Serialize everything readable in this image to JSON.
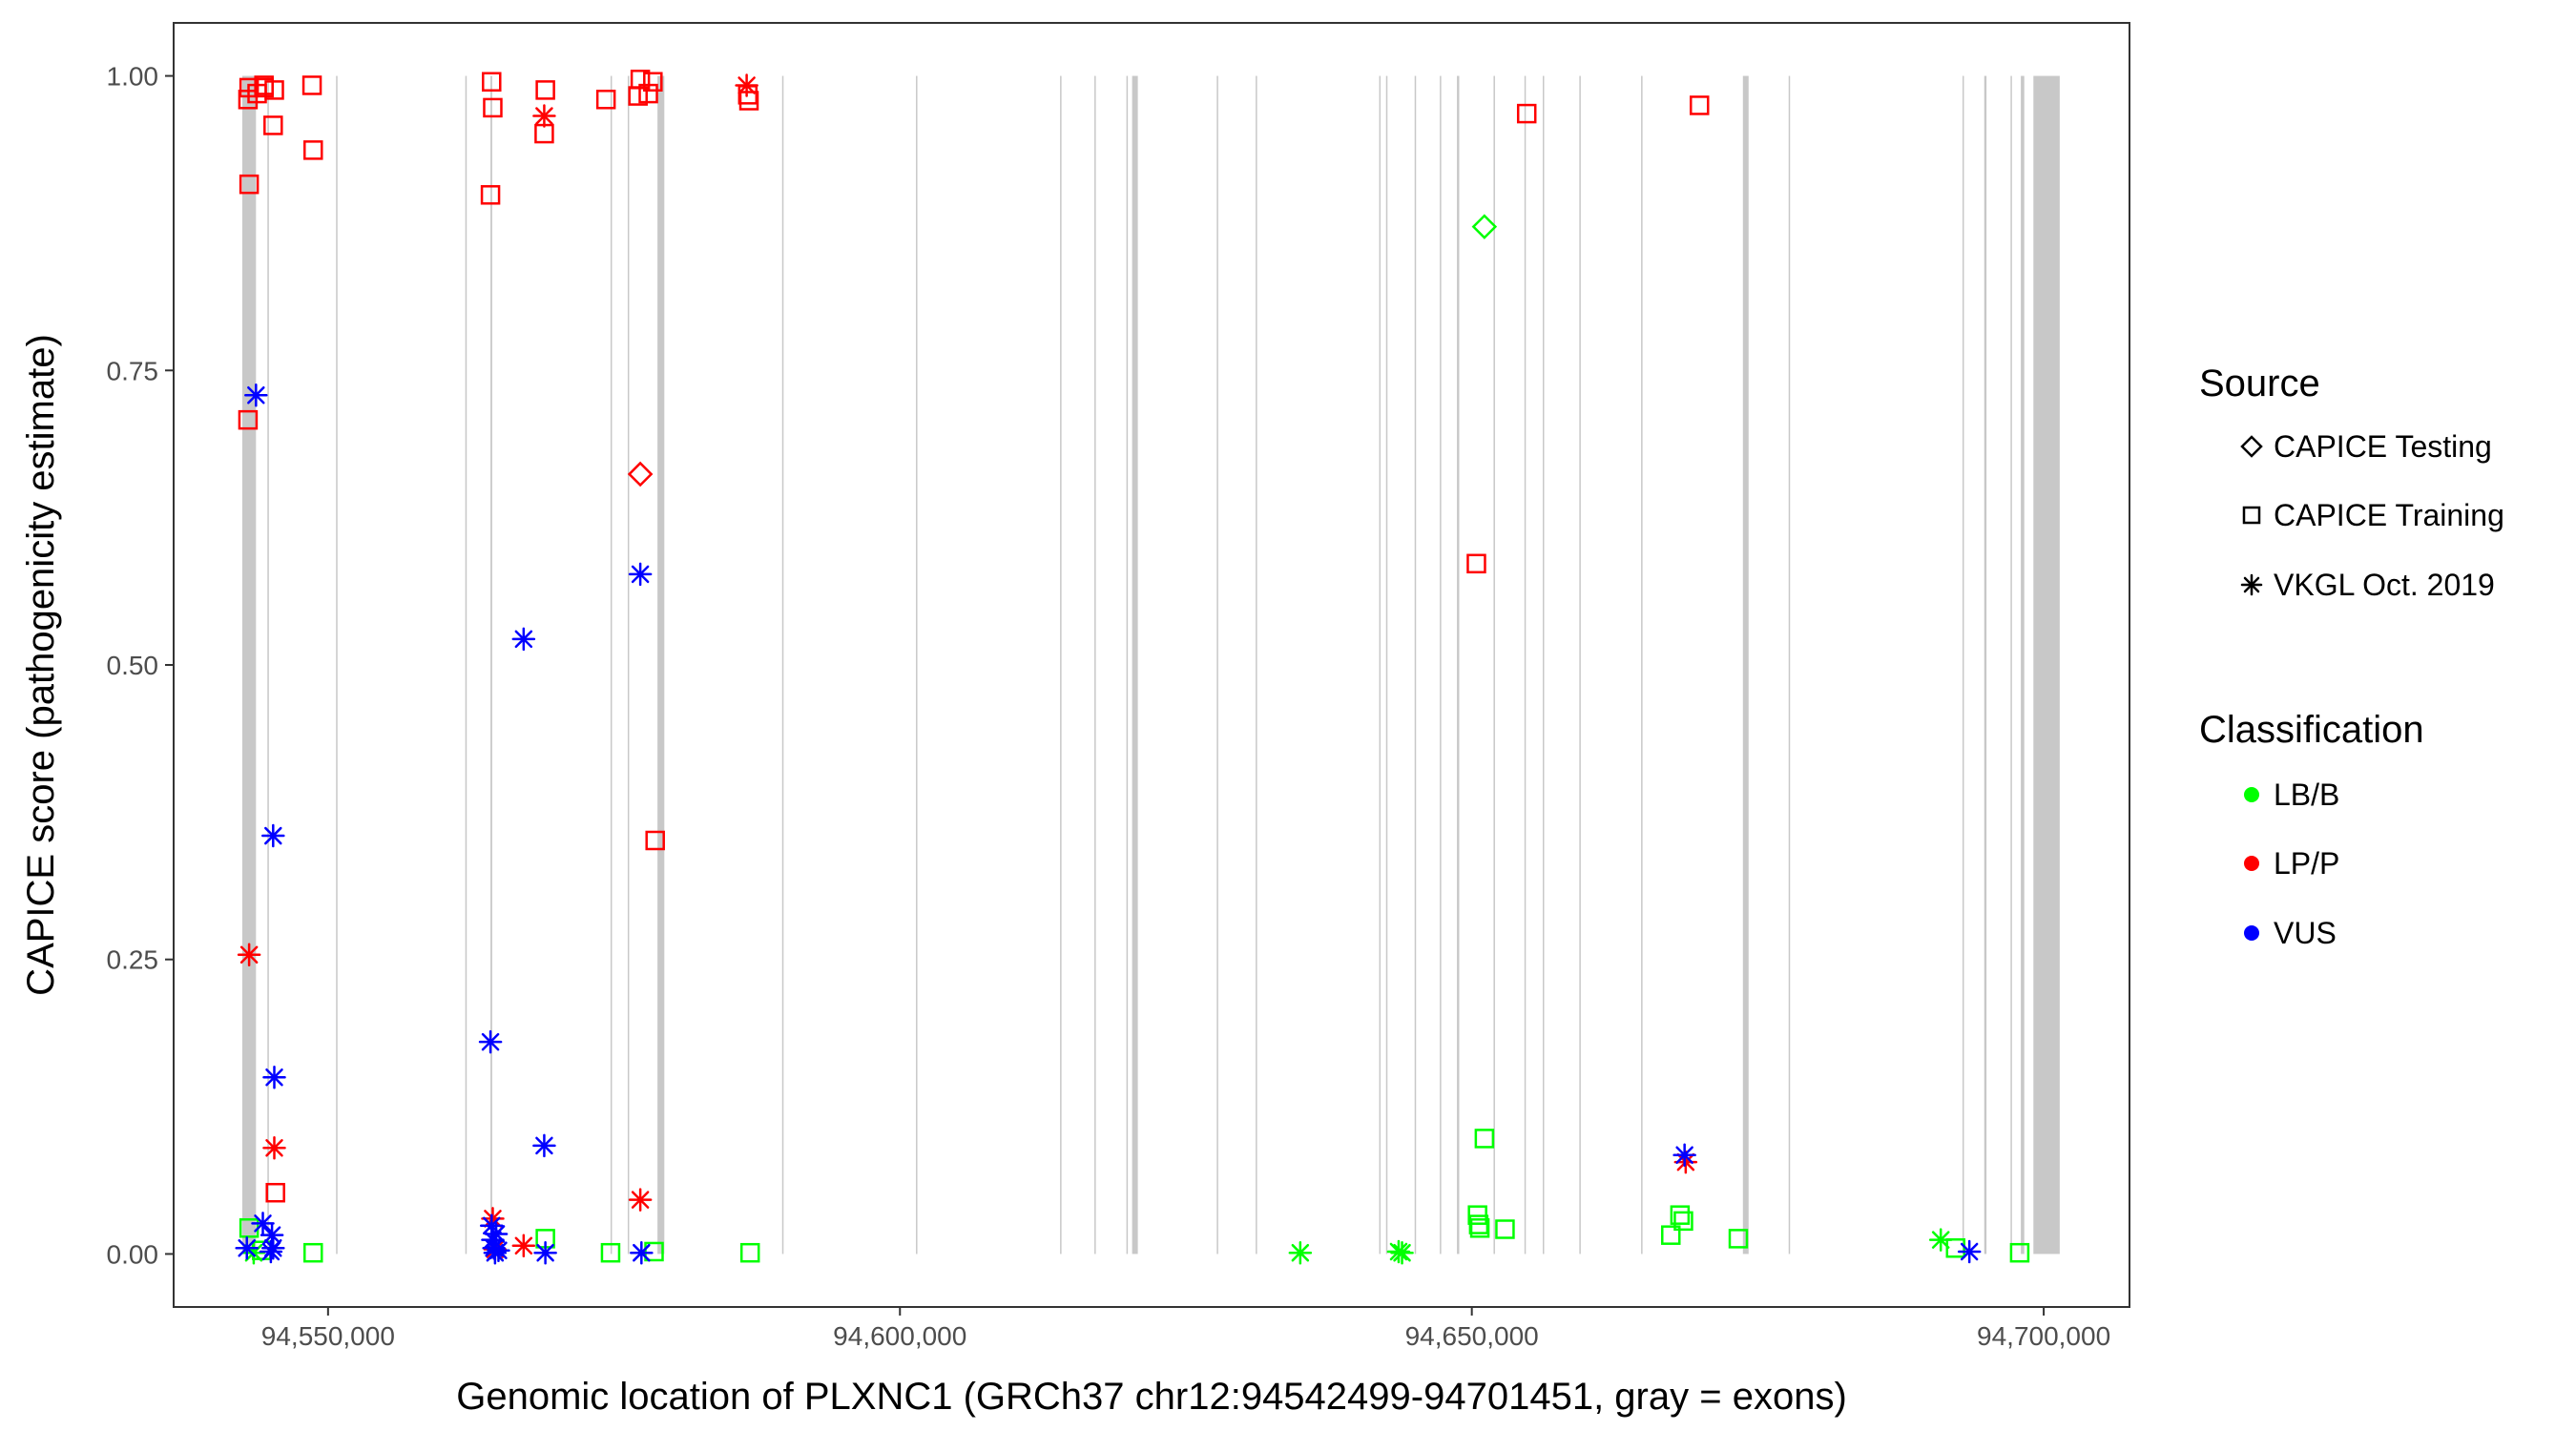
{
  "chart_data": {
    "type": "scatter",
    "title": "",
    "xlabel": "Genomic location of PLXNC1 (GRCh37 chr12:94542499-94701451, gray = exons)",
    "ylabel": "CAPICE score (pathogenicity estimate)",
    "xlim": [
      94536500,
      94707500
    ],
    "ylim": [
      -0.045,
      1.045
    ],
    "x_ticks": [
      94550000,
      94600000,
      94650000,
      94700000
    ],
    "x_tick_labels": [
      "94,550,000",
      "94,600,000",
      "94,650,000",
      "94,700,000"
    ],
    "y_ticks": [
      0,
      0.25,
      0.5,
      0.75,
      1.0
    ],
    "y_tick_labels": [
      "0.00",
      "0.25",
      "0.50",
      "0.75",
      "1.00"
    ],
    "grid": false,
    "legend_position": "right",
    "colors": {
      "LB/B": "#00ff00",
      "LP/P": "#ff0000",
      "VUS": "#0000ff",
      "exon": "#c8c8c8"
    },
    "legend": {
      "source": {
        "title": "Source",
        "items": [
          "CAPICE Testing",
          "CAPICE Training",
          "VKGL Oct. 2019"
        ]
      },
      "classification": {
        "title": "Classification",
        "items": [
          "LB/B",
          "LP/P",
          "VUS"
        ]
      }
    },
    "exons": [
      [
        94542500,
        94543700
      ],
      [
        94544700,
        94544800
      ],
      [
        94550700,
        94550800
      ],
      [
        94562000,
        94562100
      ],
      [
        94564200,
        94564350
      ],
      [
        94574700,
        94574800
      ],
      [
        94576200,
        94576300
      ],
      [
        94578800,
        94579400
      ],
      [
        94589700,
        94589800
      ],
      [
        94601400,
        94601500
      ],
      [
        94614000,
        94614100
      ],
      [
        94617000,
        94617100
      ],
      [
        94619800,
        94619900
      ],
      [
        94620300,
        94620800
      ],
      [
        94627700,
        94627800
      ],
      [
        94631100,
        94631200
      ],
      [
        94641900,
        94642000
      ],
      [
        94642500,
        94642600
      ],
      [
        94645000,
        94645100
      ],
      [
        94647200,
        94647300
      ],
      [
        94648700,
        94648900
      ],
      [
        94651900,
        94652000
      ],
      [
        94654600,
        94654700
      ],
      [
        94656200,
        94656300
      ],
      [
        94659400,
        94659500
      ],
      [
        94664800,
        94664900
      ],
      [
        94673700,
        94674200
      ],
      [
        94677700,
        94677800
      ],
      [
        94692900,
        94693000
      ],
      [
        94694800,
        94695000
      ],
      [
        94697100,
        94697200
      ],
      [
        94698000,
        94698300
      ],
      [
        94699100,
        94701400
      ]
    ],
    "series": [
      {
        "source": "CAPICE Testing",
        "classification": "LP/P",
        "x": [
          94577300
        ],
        "y": [
          0.662
        ]
      },
      {
        "source": "CAPICE Testing",
        "classification": "LB/B",
        "x": [
          94651100
        ],
        "y": [
          0.872
        ]
      },
      {
        "source": "CAPICE Training",
        "classification": "LP/P",
        "x": [
          94543000,
          94543800,
          94544400,
          94545300,
          94548600,
          94543100,
          94544400,
          94545200,
          94543100,
          94548700,
          94543000,
          94545400,
          94564300,
          94564400,
          94569000,
          94568900,
          94564200,
          94574300,
          94577100,
          94578000,
          94578400,
          94577300,
          94586700,
          94586800,
          94578600,
          94654800,
          94669900,
          94650400
        ],
        "y": [
          0.98,
          0.985,
          0.99,
          0.988,
          0.992,
          0.99,
          0.992,
          0.958,
          0.908,
          0.937,
          0.708,
          0.052,
          0.995,
          0.973,
          0.988,
          0.951,
          0.899,
          0.98,
          0.983,
          0.985,
          0.995,
          0.997,
          0.984,
          0.979,
          0.351,
          0.968,
          0.975,
          0.586
        ]
      },
      {
        "source": "CAPICE Training",
        "classification": "LB/B",
        "x": [
          94543100,
          94544200,
          94548700,
          94569000,
          94574700,
          94578500,
          94586900,
          94650500,
          94650700,
          94651100,
          94650600,
          94652900,
          94667400,
          94668200,
          94668500,
          94673300,
          94692300,
          94697900
        ],
        "y": [
          0.022,
          0.003,
          0.001,
          0.013,
          0.001,
          0.002,
          0.001,
          0.033,
          0.022,
          0.098,
          0.025,
          0.021,
          0.016,
          0.033,
          0.028,
          0.013,
          0.005,
          0.001
        ]
      },
      {
        "source": "VKGL Oct. 2019",
        "classification": "LP/P",
        "x": [
          94543100,
          94545300,
          94564400,
          94564600,
          94567100,
          94577300,
          94568900,
          94586600,
          94668700
        ],
        "y": [
          0.254,
          0.09,
          0.03,
          0.004,
          0.007,
          0.046,
          0.966,
          0.992,
          0.078
        ]
      },
      {
        "source": "VKGL Oct. 2019",
        "classification": "LB/B",
        "x": [
          94543500,
          94635000,
          94643600,
          94643900,
          94691000
        ],
        "y": [
          0.001,
          0.001,
          0.002,
          0.001,
          0.012
        ]
      },
      {
        "source": "VKGL Oct. 2019",
        "classification": "VUS",
        "x": [
          94543700,
          94545200,
          94545300,
          94542900,
          94544300,
          94545100,
          94545200,
          94545000,
          94564200,
          94564300,
          94564400,
          94564500,
          94564600,
          94564700,
          94564900,
          94567100,
          94568900,
          94569000,
          94577300,
          94577400,
          94668600,
          94693500
        ],
        "y": [
          0.729,
          0.355,
          0.15,
          0.005,
          0.026,
          0.016,
          0.005,
          0.002,
          0.18,
          0.024,
          0.012,
          0.005,
          0.001,
          0.017,
          0.003,
          0.522,
          0.092,
          0.001,
          0.577,
          0.001,
          0.084,
          0.002
        ]
      }
    ]
  }
}
